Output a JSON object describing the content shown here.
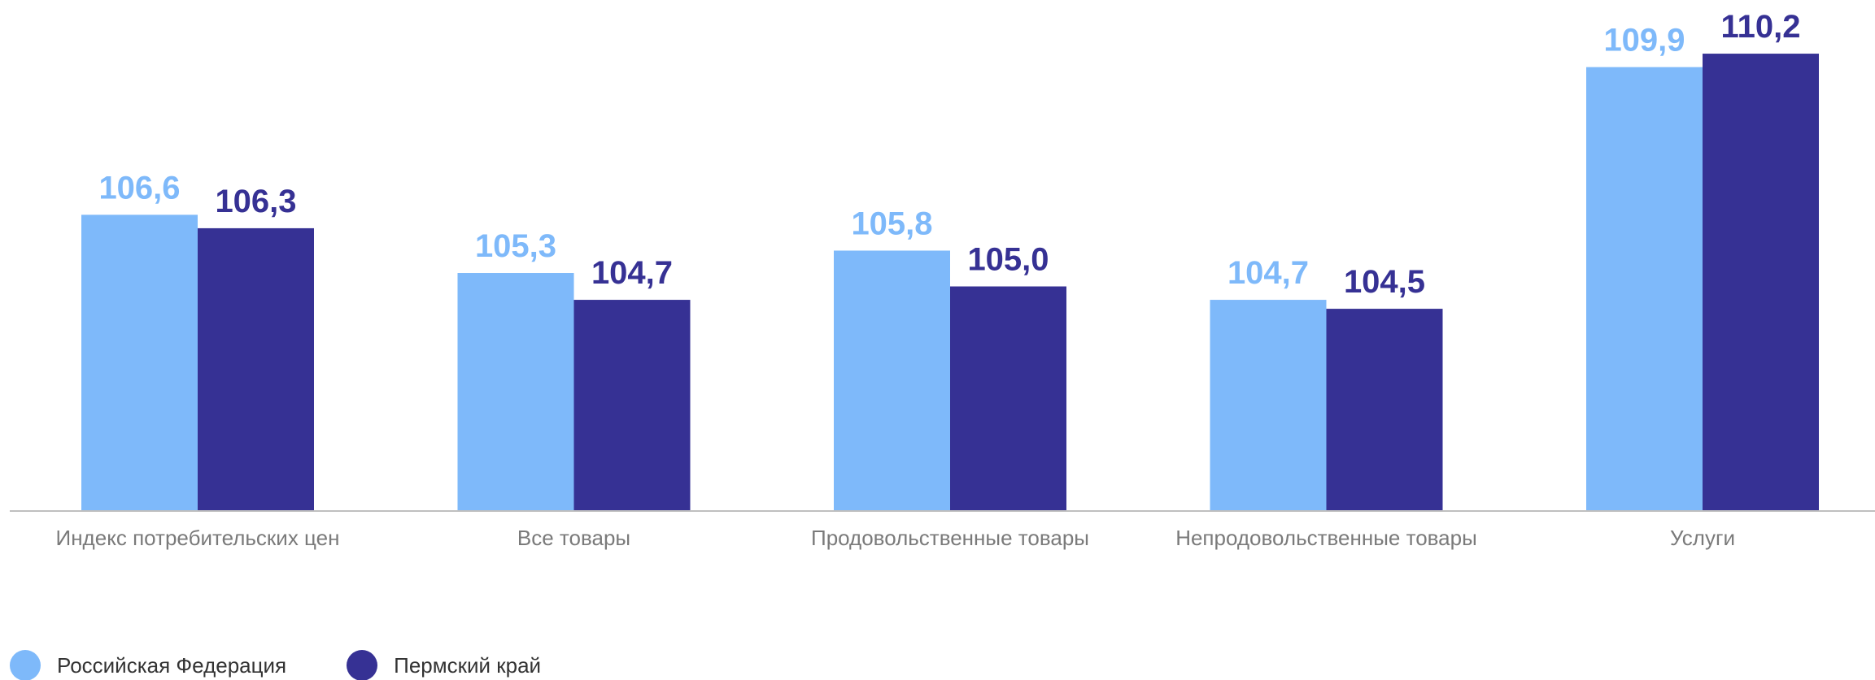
{
  "chart_data": {
    "type": "bar",
    "title": "",
    "xlabel": "",
    "ylabel": "",
    "categories": [
      "Индекс потребительских цен",
      "Все товары",
      "Продовольственные товары",
      "Непродовольственные товары",
      "Услуги"
    ],
    "series": [
      {
        "name": "Российская Федерация",
        "color": "#7eb9fa",
        "values": [
          106.6,
          105.3,
          105.8,
          104.7,
          109.9
        ],
        "labels": [
          "106,6",
          "105,3",
          "105,8",
          "104,7",
          "109,9"
        ]
      },
      {
        "name": "Пермский край",
        "color": "#363194",
        "values": [
          106.3,
          104.7,
          105.0,
          104.5,
          110.2
        ],
        "labels": [
          "106,3",
          "104,7",
          "105,0",
          "104,5",
          "110,2"
        ]
      }
    ],
    "ylim": [
      100,
      110.8
    ],
    "grid": false,
    "legend_position": "bottom-left",
    "axis_line_color": "#bfbfbf"
  }
}
